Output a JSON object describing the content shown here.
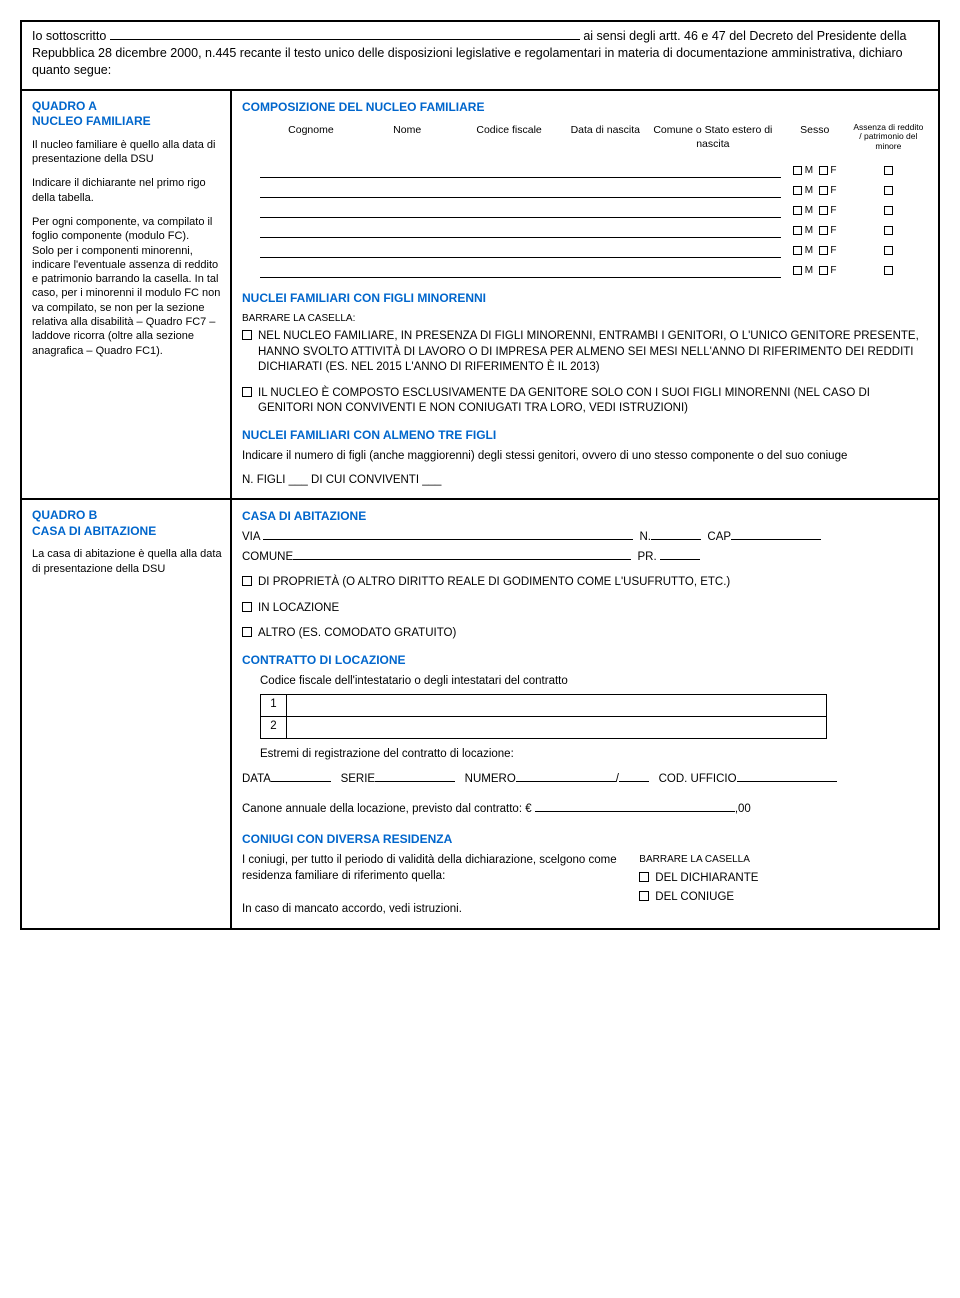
{
  "intro": {
    "line1_pre": "Io sottoscritto",
    "line1_post": "ai sensi degli artt. 46 e 47 del Decreto",
    "line2": "del Presidente della Repubblica 28 dicembre 2000, n.445 recante il testo unico delle disposizioni legislative e regolamentari in materia di documentazione amministrativa, dichiaro quanto segue:"
  },
  "quadroA": {
    "title1": "QUADRO A",
    "title2": "NUCLEO FAMILIARE",
    "p1": "Il nucleo familiare è quello alla data di presentazione della DSU",
    "p2": "Indicare il dichiarante nel primo rigo della tabella.",
    "p3": "Per ogni componente, va compilato il foglio componente (modulo FC).",
    "p4": "Solo per i componenti minorenni, indicare l'eventuale assenza di reddito e patrimonio barrando la casella. In tal caso, per i minorenni il modulo FC non va compilato, se non per la sezione relativa alla disabilità – Quadro FC7 – laddove ricorra (oltre alla sezione anagrafica – Quadro FC1)."
  },
  "comp": {
    "heading": "COMPOSIZIONE DEL NUCLEO FAMILIARE",
    "cols": {
      "cognome": "Cognome",
      "nome": "Nome",
      "cf": "Codice fiscale",
      "data": "Data di nascita",
      "comune": "Comune o Stato estero di nascita",
      "sesso": "Sesso",
      "assenza": "Assenza di reddito / patrimonio del minore"
    },
    "m": "M",
    "f": "F"
  },
  "minorenni": {
    "heading": "NUCLEI FAMILIARI CON FIGLI MINORENNI",
    "barrare": "BARRARE LA CASELLA:",
    "opt1": "NEL NUCLEO FAMILIARE, IN PRESENZA DI FIGLI MINORENNI, ENTRAMBI I GENITORI, O L'UNICO GENITORE PRESENTE, HANNO SVOLTO ATTIVITÀ DI LAVORO O DI IMPRESA PER ALMENO SEI MESI NELL'ANNO DI RIFERIMENTO DEI REDDITI DICHIARATI (ES. NEL 2015 L'ANNO DI RIFERIMENTO È IL 2013)",
    "opt2": "IL NUCLEO È COMPOSTO ESCLUSIVAMENTE DA GENITORE SOLO CON I SUOI FIGLI MINORENNI (NEL CASO DI GENITORI NON CONVIVENTI E NON CONIUGATI TRA LORO, VEDI ISTRUZIONI)"
  },
  "trefigli": {
    "heading": "NUCLEI FAMILIARI CON ALMENO TRE FIGLI",
    "desc": "Indicare il numero di figli (anche maggiorenni) degli stessi genitori, ovvero di uno stesso componente o del suo coniuge",
    "nf": "N. FIGLI ___ DI CUI CONVIVENTI ___"
  },
  "quadroB": {
    "title1": "QUADRO B",
    "title2": "CASA DI ABITAZIONE",
    "p1": "La casa di abitazione è quella alla data di presentazione della DSU"
  },
  "casa": {
    "heading": "CASA DI ABITAZIONE",
    "via": "VIA",
    "n": "N.",
    "cap": "CAP",
    "comune": "COMUNE",
    "pr": "PR.",
    "opt1": "DI PROPRIETÀ (O ALTRO DIRITTO REALE DI GODIMENTO COME L'USUFRUTTO, ETC.)",
    "opt2": "IN LOCAZIONE",
    "opt3": "ALTRO (ES. COMODATO GRATUITO)"
  },
  "contratto": {
    "heading": "CONTRATTO DI LOCAZIONE",
    "intest": "Codice fiscale dell'intestatario o degli intestatari del contratto",
    "r1": "1",
    "r2": "2",
    "estremi_label": "Estremi di registrazione del contratto di locazione:",
    "data": "DATA",
    "serie": "SERIE",
    "numero": "NUMERO",
    "cod": "COD. UFFICIO",
    "canone": "Canone annuale della locazione, previsto dal contratto: €",
    "canone_suffix": ",00"
  },
  "coniugi": {
    "heading": "CONIUGI CON DIVERSA RESIDENZA",
    "desc": "I coniugi, per tutto il periodo di validità della dichiarazione, scelgono come residenza familiare di riferimento quella:",
    "barrare": "BARRARE LA CASELLA",
    "opt1": "DEL DICHIARANTE",
    "opt2": "DEL CONIUGE",
    "footer": "In caso di mancato accordo, vedi istruzioni."
  }
}
